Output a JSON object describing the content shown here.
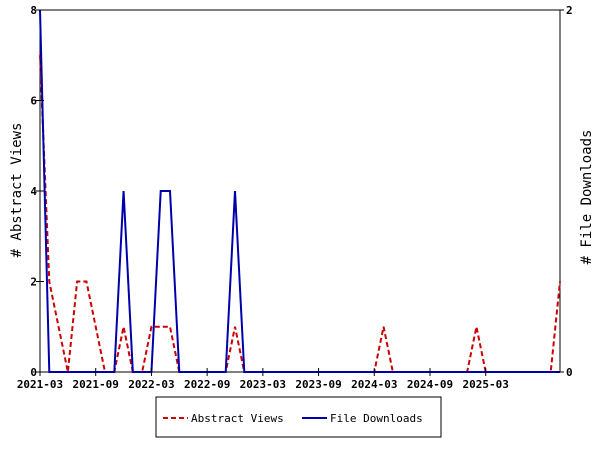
{
  "colors": {
    "views": "#cc0000",
    "downloads": "#0000aa",
    "axis": "#000000",
    "background": "#ffffff"
  },
  "chart_data": {
    "type": "line",
    "title": "",
    "grid": false,
    "legend_position": "bottom-center",
    "left_axis": {
      "label": "# Abstract Views",
      "range": [
        0,
        8
      ],
      "ticks": [
        0,
        2,
        4,
        6,
        8
      ]
    },
    "right_axis": {
      "label": "# File Downloads",
      "range": [
        0,
        2
      ],
      "ticks": [
        0,
        2
      ]
    },
    "x_axis": {
      "range": [
        "2021-03",
        "2025-11"
      ],
      "tick_labels": [
        "2021-03",
        "2021-09",
        "2022-03",
        "2022-09",
        "2023-03",
        "2023-09",
        "2024-03",
        "2024-09",
        "2025-03"
      ]
    },
    "series": [
      {
        "name": "Abstract Views",
        "axis": "left",
        "style": "dashed",
        "color": "#cc0000",
        "points": [
          [
            "2021-03",
            7
          ],
          [
            "2021-04",
            2
          ],
          [
            "2021-05",
            1
          ],
          [
            "2021-06",
            0
          ],
          [
            "2021-07",
            2
          ],
          [
            "2021-08",
            2
          ],
          [
            "2021-09",
            1
          ],
          [
            "2021-10",
            0
          ],
          [
            "2021-11",
            0
          ],
          [
            "2021-12",
            1
          ],
          [
            "2022-01",
            0
          ],
          [
            "2022-02",
            0
          ],
          [
            "2022-03",
            1
          ],
          [
            "2022-04",
            1
          ],
          [
            "2022-05",
            1
          ],
          [
            "2022-06",
            0
          ],
          [
            "2022-07",
            0
          ],
          [
            "2022-08",
            0
          ],
          [
            "2022-09",
            0
          ],
          [
            "2022-10",
            0
          ],
          [
            "2022-11",
            0
          ],
          [
            "2022-12",
            1
          ],
          [
            "2023-01",
            0
          ],
          [
            "2023-02",
            0
          ],
          [
            "2023-03",
            0
          ],
          [
            "2023-04",
            0
          ],
          [
            "2023-05",
            0
          ],
          [
            "2023-06",
            0
          ],
          [
            "2023-07",
            0
          ],
          [
            "2023-08",
            0
          ],
          [
            "2023-09",
            0
          ],
          [
            "2023-10",
            0
          ],
          [
            "2023-11",
            0
          ],
          [
            "2023-12",
            0
          ],
          [
            "2024-01",
            0
          ],
          [
            "2024-02",
            0
          ],
          [
            "2024-03",
            0
          ],
          [
            "2024-04",
            1
          ],
          [
            "2024-05",
            0
          ],
          [
            "2024-06",
            0
          ],
          [
            "2024-07",
            0
          ],
          [
            "2024-08",
            0
          ],
          [
            "2024-09",
            0
          ],
          [
            "2024-10",
            0
          ],
          [
            "2024-11",
            0
          ],
          [
            "2024-12",
            0
          ],
          [
            "2025-01",
            0
          ],
          [
            "2025-02",
            1
          ],
          [
            "2025-03",
            0
          ],
          [
            "2025-04",
            0
          ],
          [
            "2025-05",
            0
          ],
          [
            "2025-06",
            0
          ],
          [
            "2025-07",
            0
          ],
          [
            "2025-08",
            0
          ],
          [
            "2025-09",
            0
          ],
          [
            "2025-10",
            0
          ],
          [
            "2025-11",
            2
          ]
        ]
      },
      {
        "name": "File Downloads",
        "axis": "right",
        "style": "solid",
        "color": "#0000aa",
        "points": [
          [
            "2021-03",
            2
          ],
          [
            "2021-04",
            0
          ],
          [
            "2021-05",
            0
          ],
          [
            "2021-06",
            0
          ],
          [
            "2021-07",
            0
          ],
          [
            "2021-08",
            0
          ],
          [
            "2021-09",
            0
          ],
          [
            "2021-10",
            0
          ],
          [
            "2021-11",
            0
          ],
          [
            "2021-12",
            1
          ],
          [
            "2022-01",
            0
          ],
          [
            "2022-02",
            0
          ],
          [
            "2022-03",
            0
          ],
          [
            "2022-04",
            1
          ],
          [
            "2022-05",
            1
          ],
          [
            "2022-06",
            0
          ],
          [
            "2022-07",
            0
          ],
          [
            "2022-08",
            0
          ],
          [
            "2022-09",
            0
          ],
          [
            "2022-10",
            0
          ],
          [
            "2022-11",
            0
          ],
          [
            "2022-12",
            1
          ],
          [
            "2023-01",
            0
          ],
          [
            "2023-02",
            0
          ],
          [
            "2023-03",
            0
          ],
          [
            "2023-04",
            0
          ],
          [
            "2023-05",
            0
          ],
          [
            "2023-06",
            0
          ],
          [
            "2023-07",
            0
          ],
          [
            "2023-08",
            0
          ],
          [
            "2023-09",
            0
          ],
          [
            "2023-10",
            0
          ],
          [
            "2023-11",
            0
          ],
          [
            "2023-12",
            0
          ],
          [
            "2024-01",
            0
          ],
          [
            "2024-02",
            0
          ],
          [
            "2024-03",
            0
          ],
          [
            "2024-04",
            0
          ],
          [
            "2024-05",
            0
          ],
          [
            "2024-06",
            0
          ],
          [
            "2024-07",
            0
          ],
          [
            "2024-08",
            0
          ],
          [
            "2024-09",
            0
          ],
          [
            "2024-10",
            0
          ],
          [
            "2024-11",
            0
          ],
          [
            "2024-12",
            0
          ],
          [
            "2025-01",
            0
          ],
          [
            "2025-02",
            0
          ],
          [
            "2025-03",
            0
          ],
          [
            "2025-04",
            0
          ],
          [
            "2025-05",
            0
          ],
          [
            "2025-06",
            0
          ],
          [
            "2025-07",
            0
          ],
          [
            "2025-08",
            0
          ],
          [
            "2025-09",
            0
          ],
          [
            "2025-10",
            0
          ],
          [
            "2025-11",
            0
          ]
        ]
      }
    ]
  },
  "legend": {
    "items": [
      {
        "label": "Abstract Views"
      },
      {
        "label": "File Downloads"
      }
    ]
  }
}
